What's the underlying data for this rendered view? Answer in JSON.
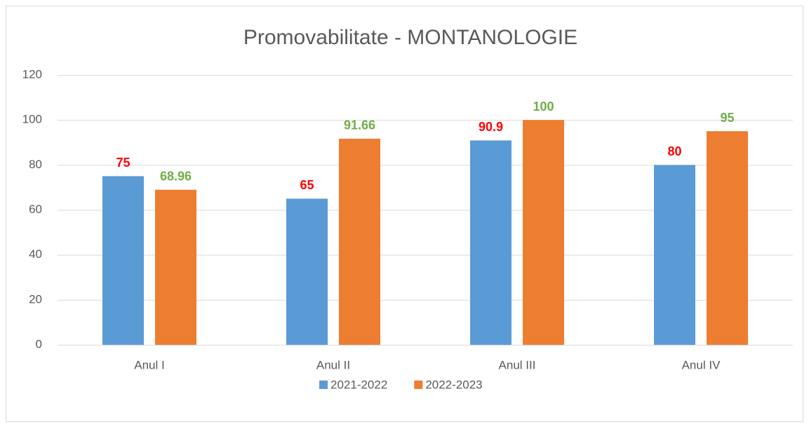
{
  "chart_data": {
    "type": "bar",
    "title": "Promovabilitate - MONTANOLOGIE",
    "categories": [
      "Anul I",
      "Anul II",
      "Anul III",
      "Anul IV"
    ],
    "series": [
      {
        "name": "2021-2022",
        "color": "#5b9bd5",
        "label_color": "#ff0000",
        "values": [
          75,
          65,
          90.9,
          80
        ]
      },
      {
        "name": "2022-2023",
        "color": "#ed7d31",
        "label_color": "#70ad47",
        "values": [
          68.96,
          91.66,
          100,
          95
        ]
      }
    ],
    "ylim": [
      0,
      120
    ],
    "yticks": [
      0,
      20,
      40,
      60,
      80,
      100,
      120
    ],
    "grid": true,
    "legend": "bottom"
  }
}
